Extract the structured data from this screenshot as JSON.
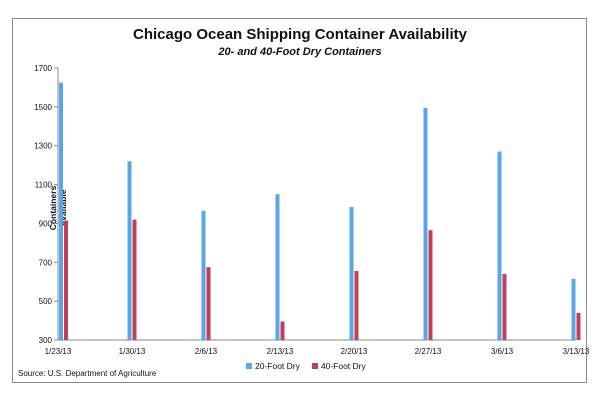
{
  "chart_data": {
    "type": "bar",
    "title": "Chicago Ocean Shipping Container Availability",
    "subtitle": "20- and 40-Foot Dry Containers",
    "xlabel": "",
    "ylabel": "Containers Available",
    "source": "Source: U.S. Department of Agriculture",
    "ylim": [
      300,
      1700
    ],
    "yticks": [
      "1700",
      "1500",
      "1300",
      "1100",
      "900",
      "700",
      "500",
      "300"
    ],
    "categories": [
      "1/23/13",
      "1/30/13",
      "2/6/13",
      "2/13/13",
      "2/20/13",
      "2/27/13",
      "3/6/13",
      "3/13/13"
    ],
    "series": [
      {
        "name": "20-Foot Dry",
        "color": "#5aa5e6",
        "values": [
          1625,
          1220,
          965,
          1050,
          985,
          1495,
          1270,
          615
        ]
      },
      {
        "name": "40-Foot Dry",
        "color": "#c0405a",
        "values": [
          915,
          920,
          675,
          395,
          655,
          865,
          640,
          440
        ]
      }
    ],
    "grid": false,
    "legend_position": "bottom"
  }
}
